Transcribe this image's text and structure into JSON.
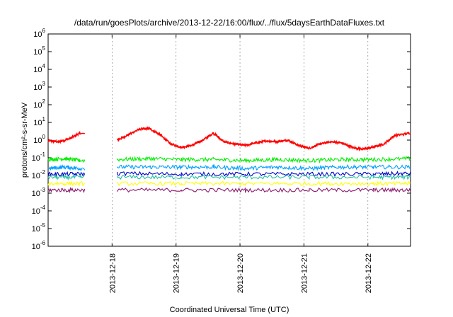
{
  "chart_data": {
    "type": "line",
    "title": "/data/run/goesPlots/archive/2013-12-22/16:00/flux/../flux/5daysEarthDataFluxes.txt",
    "xlabel": "Coordinated Universal Time (UTC)",
    "ylabel": "protons/cm²-s-sr-MeV",
    "y_scale": "log",
    "ylim": [
      1e-06,
      1000000.0
    ],
    "xlim": [
      "2013-12-17 00:00",
      "2013-12-22 16:00"
    ],
    "grid": false,
    "legend": "none",
    "x_ticks": [
      "2013-12-18",
      "2013-12-19",
      "2013-12-20",
      "2013-12-21",
      "2013-12-22"
    ],
    "y_ticks": [
      {
        "mant": "10",
        "exp": "6"
      },
      {
        "mant": "10",
        "exp": "5"
      },
      {
        "mant": "10",
        "exp": "4"
      },
      {
        "mant": "10",
        "exp": "3"
      },
      {
        "mant": "10",
        "exp": "2"
      },
      {
        "mant": "10",
        "exp": "1"
      },
      {
        "mant": "10",
        "exp": "0"
      },
      {
        "mant": "10",
        "exp": "-1"
      },
      {
        "mant": "10",
        "exp": "-2"
      },
      {
        "mant": "10",
        "exp": "-3"
      },
      {
        "mant": "10",
        "exp": "-4"
      },
      {
        "mant": "10",
        "exp": "-5"
      },
      {
        "mant": "10",
        "exp": "-6"
      }
    ],
    "data_gap": [
      "2013-12-17 14:00",
      "2013-12-18 02:00"
    ],
    "series": [
      {
        "color": "#ff0000",
        "points": [
          [
            "2013-12-17 00:00",
            0.9
          ],
          [
            "2013-12-17 04:00",
            0.8
          ],
          [
            "2013-12-17 08:00",
            1.2
          ],
          [
            "2013-12-17 12:00",
            2.5
          ],
          [
            "2013-12-18 02:00",
            1.0
          ],
          [
            "2013-12-18 06:00",
            2.0
          ],
          [
            "2013-12-18 10:00",
            4.0
          ],
          [
            "2013-12-18 14:00",
            4.5
          ],
          [
            "2013-12-18 18:00",
            2.0
          ],
          [
            "2013-12-18 22:00",
            0.6
          ],
          [
            "2013-12-19 02:00",
            0.4
          ],
          [
            "2013-12-19 06:00",
            0.5
          ],
          [
            "2013-12-19 10:00",
            1.0
          ],
          [
            "2013-12-19 14:00",
            2.5
          ],
          [
            "2013-12-19 18:00",
            0.8
          ],
          [
            "2013-12-19 22:00",
            0.6
          ],
          [
            "2013-12-20 02:00",
            0.5
          ],
          [
            "2013-12-20 06:00",
            0.7
          ],
          [
            "2013-12-20 10:00",
            0.9
          ],
          [
            "2013-12-20 14:00",
            0.8
          ],
          [
            "2013-12-20 18:00",
            1.0
          ],
          [
            "2013-12-20 22:00",
            0.5
          ],
          [
            "2013-12-21 02:00",
            0.35
          ],
          [
            "2013-12-21 06:00",
            0.6
          ],
          [
            "2013-12-21 10:00",
            0.8
          ],
          [
            "2013-12-21 14:00",
            0.7
          ],
          [
            "2013-12-21 18:00",
            0.4
          ],
          [
            "2013-12-21 22:00",
            0.3
          ],
          [
            "2013-12-22 02:00",
            0.4
          ],
          [
            "2013-12-22 06:00",
            0.6
          ],
          [
            "2013-12-22 10:00",
            1.8
          ],
          [
            "2013-12-22 16:00",
            2.5
          ]
        ]
      },
      {
        "color": "#00ee00",
        "points": [
          [
            "2013-12-17 00:00",
            0.08
          ],
          [
            "2013-12-17 06:00",
            0.09
          ],
          [
            "2013-12-17 12:00",
            0.07
          ],
          [
            "2013-12-18 02:00",
            0.08
          ],
          [
            "2013-12-18 14:00",
            0.09
          ],
          [
            "2013-12-19 02:00",
            0.08
          ],
          [
            "2013-12-19 14:00",
            0.08
          ],
          [
            "2013-12-20 02:00",
            0.07
          ],
          [
            "2013-12-20 14:00",
            0.08
          ],
          [
            "2013-12-21 02:00",
            0.07
          ],
          [
            "2013-12-21 14:00",
            0.08
          ],
          [
            "2013-12-22 02:00",
            0.08
          ],
          [
            "2013-12-22 16:00",
            0.09
          ]
        ]
      },
      {
        "color": "#00a0ff",
        "points": [
          [
            "2013-12-17 00:00",
            0.025
          ],
          [
            "2013-12-17 06:00",
            0.03
          ],
          [
            "2013-12-17 12:00",
            0.025
          ],
          [
            "2013-12-18 02:00",
            0.03
          ],
          [
            "2013-12-18 14:00",
            0.03
          ],
          [
            "2013-12-19 02:00",
            0.03
          ],
          [
            "2013-12-19 14:00",
            0.03
          ],
          [
            "2013-12-20 02:00",
            0.025
          ],
          [
            "2013-12-20 14:00",
            0.03
          ],
          [
            "2013-12-21 02:00",
            0.025
          ],
          [
            "2013-12-21 14:00",
            0.03
          ],
          [
            "2013-12-22 02:00",
            0.03
          ],
          [
            "2013-12-22 16:00",
            0.03
          ]
        ]
      },
      {
        "color": "#0000cc",
        "points": [
          [
            "2013-12-17 00:00",
            0.012
          ],
          [
            "2013-12-17 12:00",
            0.012
          ],
          [
            "2013-12-18 02:00",
            0.013
          ],
          [
            "2013-12-19 02:00",
            0.012
          ],
          [
            "2013-12-20 02:00",
            0.012
          ],
          [
            "2013-12-21 02:00",
            0.012
          ],
          [
            "2013-12-22 02:00",
            0.012
          ],
          [
            "2013-12-22 16:00",
            0.013
          ]
        ]
      },
      {
        "color": "#20c0a0",
        "points": [
          [
            "2013-12-17 00:00",
            0.008
          ],
          [
            "2013-12-17 12:00",
            0.008
          ],
          [
            "2013-12-18 02:00",
            0.008
          ],
          [
            "2013-12-19 02:00",
            0.008
          ],
          [
            "2013-12-20 02:00",
            0.008
          ],
          [
            "2013-12-21 02:00",
            0.008
          ],
          [
            "2013-12-22 02:00",
            0.008
          ],
          [
            "2013-12-22 16:00",
            0.008
          ]
        ]
      },
      {
        "color": "#ffff00",
        "points": [
          [
            "2013-12-17 00:00",
            0.0035
          ],
          [
            "2013-12-17 12:00",
            0.0035
          ],
          [
            "2013-12-18 02:00",
            0.0035
          ],
          [
            "2013-12-19 02:00",
            0.0035
          ],
          [
            "2013-12-20 02:00",
            0.0035
          ],
          [
            "2013-12-21 02:00",
            0.0035
          ],
          [
            "2013-12-22 02:00",
            0.0035
          ],
          [
            "2013-12-22 16:00",
            0.0035
          ]
        ]
      },
      {
        "color": "#8b1a6b",
        "points": [
          [
            "2013-12-17 00:00",
            0.0015
          ],
          [
            "2013-12-17 12:00",
            0.0015
          ],
          [
            "2013-12-18 02:00",
            0.0015
          ],
          [
            "2013-12-19 02:00",
            0.0015
          ],
          [
            "2013-12-20 02:00",
            0.0015
          ],
          [
            "2013-12-21 02:00",
            0.0015
          ],
          [
            "2013-12-22 02:00",
            0.0015
          ],
          [
            "2013-12-22 16:00",
            0.0015
          ]
        ]
      }
    ]
  }
}
